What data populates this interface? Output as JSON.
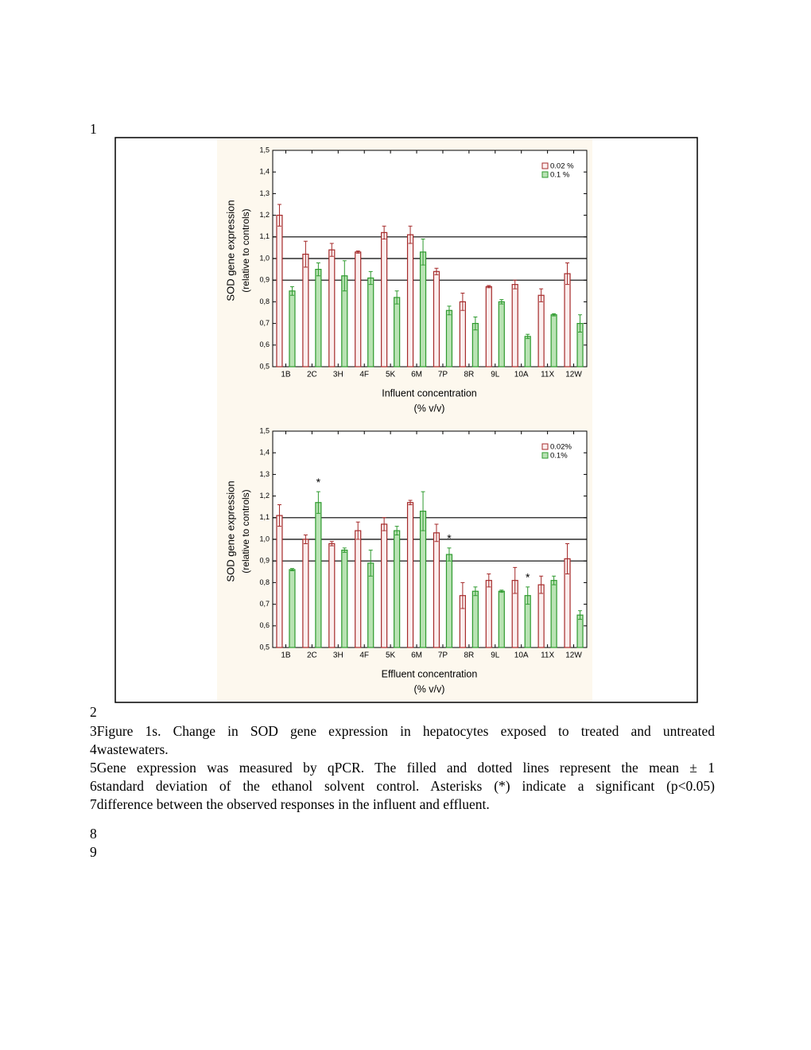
{
  "line_numbers": [
    "1",
    "2",
    "3",
    "4",
    "5",
    "6",
    "7",
    "8",
    "9"
  ],
  "caption": [
    "Figure 1s. Change in SOD gene expression in hepatocytes exposed to treated and untreated",
    "wastewaters.",
    "Gene expression was measured by qPCR. The filled and dotted lines represent the mean ± 1",
    "standard deviation of the ethanol solvent control. Asterisks (*) indicate a significant (p<0.05)",
    "difference between the observed responses in the influent and effluent."
  ],
  "chart_data": [
    {
      "type": "bar",
      "ylabel": [
        "SOD gene expression",
        "(relative to controls)"
      ],
      "xlabel": [
        "Influent concentration",
        "(% v/v)"
      ],
      "categories": [
        "1B",
        "2C",
        "3H",
        "4F",
        "5K",
        "6M",
        "7P",
        "8R",
        "9L",
        "10A",
        "11X",
        "12W"
      ],
      "series": [
        {
          "name": "0.02 %",
          "color": "#a52a2a",
          "fill": "#fbeeee",
          "values": [
            1.2,
            1.02,
            1.04,
            1.03,
            1.12,
            1.11,
            0.94,
            0.8,
            0.87,
            0.88,
            0.83,
            0.93
          ],
          "errors": [
            0.05,
            0.06,
            0.03,
            0.005,
            0.03,
            0.04,
            0.015,
            0.04,
            0.005,
            0.02,
            0.03,
            0.05
          ]
        },
        {
          "name": "0.1 %",
          "color": "#2e9a2e",
          "fill": "#b9e3b4",
          "values": [
            0.85,
            0.95,
            0.92,
            0.91,
            0.82,
            1.03,
            0.76,
            0.7,
            0.8,
            0.64,
            0.74,
            0.7
          ],
          "errors": [
            0.02,
            0.03,
            0.07,
            0.03,
            0.03,
            0.06,
            0.02,
            0.03,
            0.01,
            0.01,
            0.005,
            0.04
          ]
        }
      ],
      "reference_lines": [
        0.9,
        1.0,
        1.1
      ],
      "ylim": [
        0.5,
        1.5
      ],
      "yticks": [
        {
          "value": 0.5,
          "label": "0,5"
        },
        {
          "value": 0.6,
          "label": "0,6"
        },
        {
          "value": 0.7,
          "label": "0,7"
        },
        {
          "value": 0.8,
          "label": "0,8"
        },
        {
          "value": 0.9,
          "label": "0,9"
        },
        {
          "value": 1.0,
          "label": "1,0"
        },
        {
          "value": 1.1,
          "label": "1,1"
        },
        {
          "value": 1.2,
          "label": "1,2"
        },
        {
          "value": 1.3,
          "label": "1,3"
        },
        {
          "value": 1.4,
          "label": "1,4"
        },
        {
          "value": 1.5,
          "label": "1,5"
        }
      ],
      "legend": "upper right",
      "annotations": []
    },
    {
      "type": "bar",
      "ylabel": [
        "SOD gene expression",
        "(relative to controls)"
      ],
      "xlabel": [
        "Effluent concentration",
        "(% v/v)"
      ],
      "categories": [
        "1B",
        "2C",
        "3H",
        "4F",
        "5K",
        "6M",
        "7P",
        "8R",
        "9L",
        "10A",
        "11X",
        "12W"
      ],
      "series": [
        {
          "name": "0.02%",
          "color": "#a52a2a",
          "fill": "#fbeeee",
          "values": [
            1.11,
            1.0,
            0.98,
            1.04,
            1.07,
            1.17,
            1.03,
            0.74,
            0.81,
            0.81,
            0.79,
            0.91
          ],
          "errors": [
            0.05,
            0.02,
            0.01,
            0.04,
            0.03,
            0.01,
            0.04,
            0.06,
            0.03,
            0.06,
            0.04,
            0.07
          ]
        },
        {
          "name": "0.1%",
          "color": "#2e9a2e",
          "fill": "#b9e3b4",
          "values": [
            0.86,
            1.17,
            0.95,
            0.89,
            1.04,
            1.13,
            0.93,
            0.76,
            0.76,
            0.74,
            0.81,
            0.65
          ],
          "errors": [
            0.005,
            0.05,
            0.01,
            0.06,
            0.02,
            0.09,
            0.03,
            0.02,
            0.005,
            0.04,
            0.02,
            0.02
          ]
        }
      ],
      "reference_lines": [
        0.9,
        1.0,
        1.1
      ],
      "ylim": [
        0.5,
        1.5
      ],
      "yticks": [
        {
          "value": 0.5,
          "label": "0,5"
        },
        {
          "value": 0.6,
          "label": "0,6"
        },
        {
          "value": 0.7,
          "label": "0,7"
        },
        {
          "value": 0.8,
          "label": "0,8"
        },
        {
          "value": 0.9,
          "label": "0,9"
        },
        {
          "value": 1.0,
          "label": "1,0"
        },
        {
          "value": 1.1,
          "label": "1,1"
        },
        {
          "value": 1.2,
          "label": "1,2"
        },
        {
          "value": 1.3,
          "label": "1,3"
        },
        {
          "value": 1.4,
          "label": "1,4"
        },
        {
          "value": 1.5,
          "label": "1,5"
        }
      ],
      "legend": "upper right",
      "annotations": [
        {
          "text": "*",
          "series": "0.1%",
          "category": "2C"
        },
        {
          "text": "*",
          "series": "0.1%",
          "category": "7P"
        },
        {
          "text": "*",
          "series": "0.1%",
          "category": "10A"
        }
      ]
    }
  ]
}
